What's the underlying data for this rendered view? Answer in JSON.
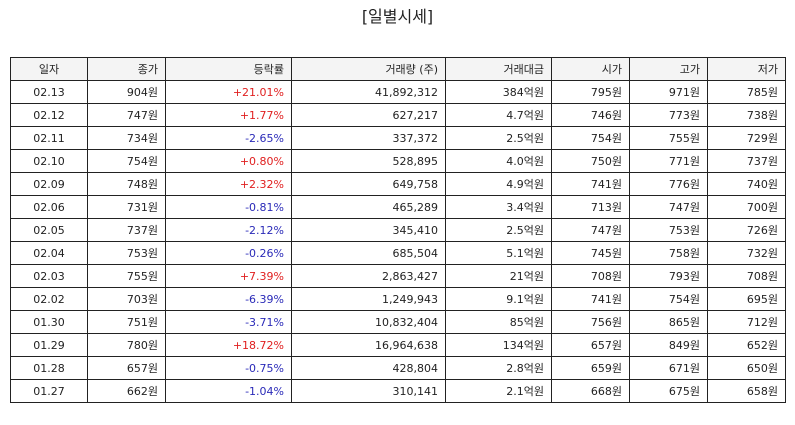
{
  "title": "[일별시세]",
  "columns": [
    "일자",
    "종가",
    "등락률",
    "거래량 (주)",
    "거래대금",
    "시가",
    "고가",
    "저가"
  ],
  "rows": [
    {
      "date": "02.13",
      "close": "904원",
      "change": "+21.01%",
      "direction": "up",
      "volume": "41,892,312",
      "amount": "384억원",
      "open": "795원",
      "high": "971원",
      "low": "785원"
    },
    {
      "date": "02.12",
      "close": "747원",
      "change": "+1.77%",
      "direction": "up",
      "volume": "627,217",
      "amount": "4.7억원",
      "open": "746원",
      "high": "773원",
      "low": "738원"
    },
    {
      "date": "02.11",
      "close": "734원",
      "change": "-2.65%",
      "direction": "down",
      "volume": "337,372",
      "amount": "2.5억원",
      "open": "754원",
      "high": "755원",
      "low": "729원"
    },
    {
      "date": "02.10",
      "close": "754원",
      "change": "+0.80%",
      "direction": "up",
      "volume": "528,895",
      "amount": "4.0억원",
      "open": "750원",
      "high": "771원",
      "low": "737원"
    },
    {
      "date": "02.09",
      "close": "748원",
      "change": "+2.32%",
      "direction": "up",
      "volume": "649,758",
      "amount": "4.9억원",
      "open": "741원",
      "high": "776원",
      "low": "740원"
    },
    {
      "date": "02.06",
      "close": "731원",
      "change": "-0.81%",
      "direction": "down",
      "volume": "465,289",
      "amount": "3.4억원",
      "open": "713원",
      "high": "747원",
      "low": "700원"
    },
    {
      "date": "02.05",
      "close": "737원",
      "change": "-2.12%",
      "direction": "down",
      "volume": "345,410",
      "amount": "2.5억원",
      "open": "747원",
      "high": "753원",
      "low": "726원"
    },
    {
      "date": "02.04",
      "close": "753원",
      "change": "-0.26%",
      "direction": "down",
      "volume": "685,504",
      "amount": "5.1억원",
      "open": "745원",
      "high": "758원",
      "low": "732원"
    },
    {
      "date": "02.03",
      "close": "755원",
      "change": "+7.39%",
      "direction": "up",
      "volume": "2,863,427",
      "amount": "21억원",
      "open": "708원",
      "high": "793원",
      "low": "708원"
    },
    {
      "date": "02.02",
      "close": "703원",
      "change": "-6.39%",
      "direction": "down",
      "volume": "1,249,943",
      "amount": "9.1억원",
      "open": "741원",
      "high": "754원",
      "low": "695원"
    },
    {
      "date": "01.30",
      "close": "751원",
      "change": "-3.71%",
      "direction": "down",
      "volume": "10,832,404",
      "amount": "85억원",
      "open": "756원",
      "high": "865원",
      "low": "712원"
    },
    {
      "date": "01.29",
      "close": "780원",
      "change": "+18.72%",
      "direction": "up",
      "volume": "16,964,638",
      "amount": "134억원",
      "open": "657원",
      "high": "849원",
      "low": "652원"
    },
    {
      "date": "01.28",
      "close": "657원",
      "change": "-0.75%",
      "direction": "down",
      "volume": "428,804",
      "amount": "2.8억원",
      "open": "659원",
      "high": "671원",
      "low": "650원"
    },
    {
      "date": "01.27",
      "close": "662원",
      "change": "-1.04%",
      "direction": "down",
      "volume": "310,141",
      "amount": "2.1억원",
      "open": "668원",
      "high": "675원",
      "low": "658원"
    }
  ],
  "colors": {
    "up": "#e02020",
    "down": "#2a2ab8",
    "header_bg": "#f4f4f4",
    "border": "#222222"
  }
}
